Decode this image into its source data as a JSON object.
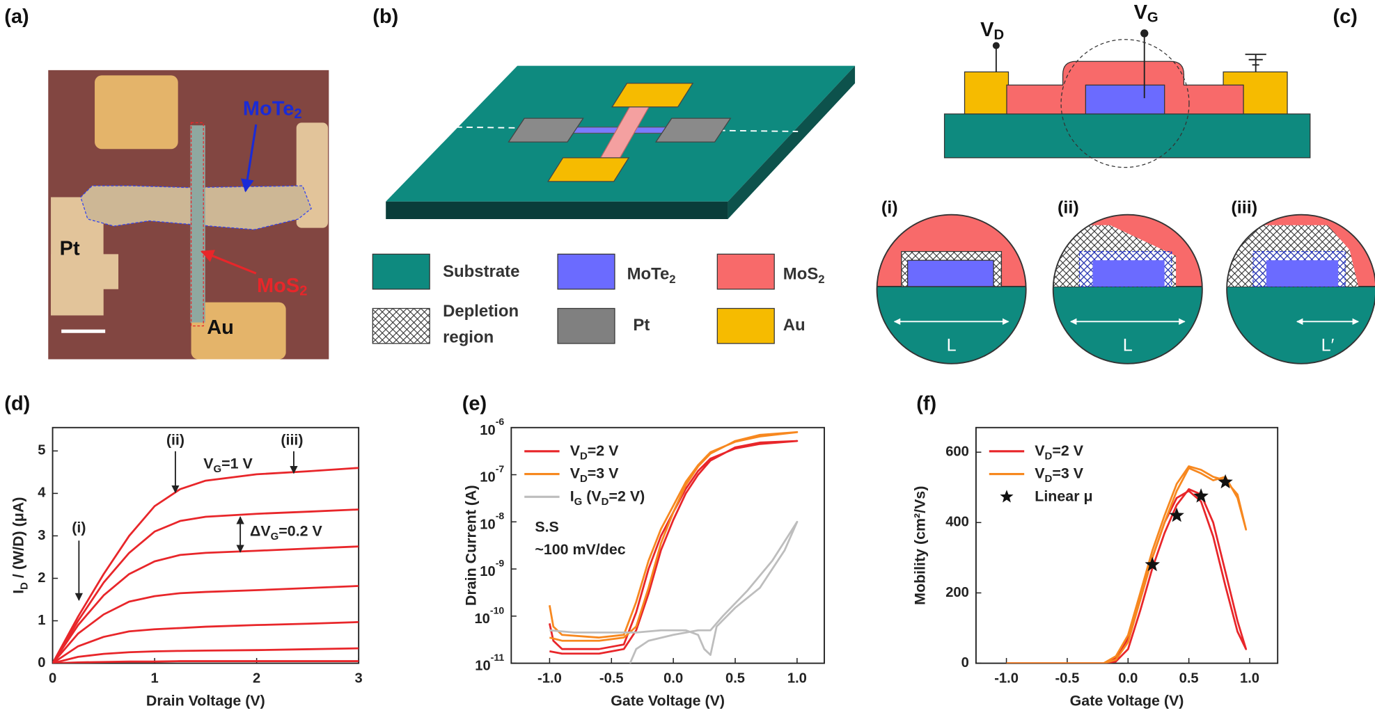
{
  "panel_a": {
    "label": "(a)",
    "mote2": [
      "MoTe",
      "2"
    ],
    "pt": "Pt",
    "mos2": [
      "MoS",
      "2"
    ],
    "au": "Au"
  },
  "panel_b": {
    "label": "(b)",
    "legend": {
      "substrate": "Substrate",
      "mote2": [
        "MoTe",
        "2"
      ],
      "mos2": [
        "MoS",
        "2"
      ],
      "depletion": [
        "Depletion",
        "region"
      ],
      "pt": "Pt",
      "au": "Au"
    }
  },
  "panel_c": {
    "label": "(c)",
    "vd": [
      "V",
      "D"
    ],
    "vg": [
      "V",
      "G"
    ],
    "insets": [
      "(i)",
      "(ii)",
      "(iii)"
    ],
    "lengths": [
      "L",
      "L",
      "L′"
    ]
  },
  "chart_data": [
    {
      "type": "line",
      "label": "(d)",
      "x_label": "Drain Voltage (V)",
      "y_label": [
        "I",
        "D",
        " / (W/D) (μA)"
      ],
      "x": [
        0,
        0.25,
        0.5,
        0.75,
        1,
        1.25,
        1.5,
        2,
        2.5,
        3
      ],
      "series": [
        {
          "color": "#e8262a",
          "values": [
            0,
            1.1,
            2.1,
            3.0,
            3.7,
            4.1,
            4.3,
            4.45,
            4.52,
            4.6
          ]
        },
        {
          "color": "#e8262a",
          "values": [
            0,
            1.0,
            1.9,
            2.6,
            3.1,
            3.35,
            3.45,
            3.52,
            3.57,
            3.62
          ]
        },
        {
          "color": "#e8262a",
          "values": [
            0,
            0.9,
            1.6,
            2.1,
            2.4,
            2.55,
            2.6,
            2.65,
            2.7,
            2.75
          ]
        },
        {
          "color": "#e8262a",
          "values": [
            0,
            0.7,
            1.15,
            1.45,
            1.58,
            1.65,
            1.68,
            1.72,
            1.77,
            1.82
          ]
        },
        {
          "color": "#e8262a",
          "values": [
            0,
            0.4,
            0.62,
            0.75,
            0.8,
            0.83,
            0.86,
            0.9,
            0.93,
            0.97
          ]
        },
        {
          "color": "#e8262a",
          "values": [
            0,
            0.15,
            0.22,
            0.26,
            0.28,
            0.29,
            0.3,
            0.31,
            0.33,
            0.35
          ]
        },
        {
          "color": "#e8262a",
          "values": [
            0,
            0.02,
            0.03,
            0.04,
            0.04,
            0.05,
            0.05,
            0.05,
            0.05,
            0.05
          ]
        }
      ],
      "xlim": [
        0,
        3
      ],
      "xticks": [
        0,
        1,
        2,
        3
      ],
      "ylim": [
        0,
        5.55
      ],
      "yticks": [
        0,
        1,
        2,
        3,
        4,
        5
      ],
      "annotations": [
        [
          "(i)"
        ],
        [
          "(ii)"
        ],
        [
          "(iii)"
        ],
        [
          "V",
          "G",
          "=1 V"
        ],
        [
          "ΔV",
          "G",
          "=0.2 V"
        ]
      ]
    },
    {
      "type": "line",
      "label": "(e)",
      "x_label": "Gate Voltage (V)",
      "y_label": [
        "Drain Current (A)"
      ],
      "ylog": true,
      "legend": "upper left",
      "series": [
        {
          "name": [
            "V",
            "D",
            "=2 V"
          ],
          "color": "#e8262a",
          "x": [
            -1,
            -0.97,
            -0.9,
            -0.6,
            -0.4,
            -0.3,
            -0.2,
            -0.1,
            0,
            0.1,
            0.2,
            0.3,
            0.5,
            0.7,
            1.0,
            0.7,
            0.5,
            0.3,
            0.2,
            0.1,
            0,
            -0.1,
            -0.2,
            -0.3,
            -0.4,
            -0.6,
            -0.9,
            -1
          ],
          "values": [
            7e-11,
            3e-11,
            2e-11,
            2e-11,
            2.5e-11,
            1.2e-10,
            1e-09,
            5e-09,
            1.6e-08,
            5e-08,
            1.2e-07,
            2.2e-07,
            3.6e-07,
            4.5e-07,
            5.2e-07,
            4.8e-07,
            3.8e-07,
            2e-07,
            1e-07,
            4e-08,
            1.1e-08,
            2.5e-09,
            3e-10,
            5e-11,
            2e-11,
            1.6e-11,
            1.6e-11,
            1.8e-11
          ]
        },
        {
          "name": [
            "V",
            "D",
            "=3 V"
          ],
          "color": "#f7881f",
          "x": [
            -1,
            -0.97,
            -0.9,
            -0.6,
            -0.4,
            -0.3,
            -0.2,
            -0.1,
            0,
            0.1,
            0.2,
            0.3,
            0.5,
            0.7,
            1.0,
            0.7,
            0.5,
            0.3,
            0.2,
            0.1,
            0,
            -0.1,
            -0.2,
            -0.3,
            -0.4,
            -0.6,
            -0.9,
            -1
          ],
          "values": [
            1.7e-10,
            6e-11,
            4e-11,
            3.5e-11,
            4e-11,
            2e-10,
            1.5e-09,
            7e-09,
            2.2e-08,
            7e-08,
            1.6e-07,
            3e-07,
            5e-07,
            6.5e-07,
            8e-07,
            7e-07,
            5.2e-07,
            2.8e-07,
            1.5e-07,
            6e-08,
            1.6e-08,
            3.5e-09,
            4e-10,
            6e-11,
            3.5e-11,
            3e-11,
            3e-11,
            3.5e-11
          ]
        },
        {
          "name": [
            "I",
            "G",
            " (V",
            "D",
            "=2 V)"
          ],
          "color": "#bdbdbd",
          "x": [
            -1,
            -0.8,
            -0.5,
            -0.3,
            -0.1,
            0.1,
            0.2,
            0.25,
            0.3,
            0.35,
            0.5,
            0.7,
            0.9,
            1.0,
            0.8,
            0.6,
            0.4,
            0.3,
            0.2,
            0,
            -0.2,
            -0.3,
            -0.35
          ],
          "values": [
            5e-11,
            4.5e-11,
            4.5e-11,
            4.5e-11,
            5e-11,
            5e-11,
            4e-11,
            2e-11,
            1.5e-11,
            6e-11,
            1.5e-10,
            4e-10,
            2.5e-09,
            1e-08,
            1.5e-09,
            3.5e-10,
            1e-10,
            5e-11,
            5e-11,
            4e-11,
            3e-11,
            2e-11,
            1e-11
          ]
        }
      ],
      "xlim": [
        -1.31,
        1.22
      ],
      "xticks": [
        {
          "value": -1,
          "label": "-1.0"
        },
        {
          "value": -0.5,
          "label": "-0.5"
        },
        {
          "value": 0,
          "label": "0.0"
        },
        0.5,
        {
          "value": 1,
          "label": "1.0"
        }
      ],
      "ylim": [
        1e-11,
        1e-06
      ],
      "yticks": [
        {
          "value": 1e-11,
          "label": "10",
          "exponent": "-11"
        },
        {
          "value": 1e-10,
          "label": "10",
          "exponent": "-10"
        },
        {
          "value": 1e-09,
          "label": "10",
          "exponent": "-9"
        },
        {
          "value": 1e-08,
          "label": "10",
          "exponent": "-8"
        },
        {
          "value": 1e-07,
          "label": "10",
          "exponent": "-7"
        },
        {
          "value": 1e-06,
          "label": "10",
          "exponent": "-6"
        }
      ],
      "annotations": [
        [
          "S.S"
        ],
        [
          "~100 mV/dec"
        ]
      ]
    },
    {
      "type": "line",
      "label": "(f)",
      "x_label": "Gate Voltage (V)",
      "y_label": [
        "Mobility (cm²/Vs)"
      ],
      "legend": "upper left",
      "series": [
        {
          "name": [
            "V",
            "D",
            "=2 V"
          ],
          "color": "#e8262a",
          "x": [
            -1,
            -0.2,
            -0.1,
            0,
            0.1,
            0.2,
            0.3,
            0.4,
            0.5,
            0.6,
            0.7,
            0.8,
            0.9,
            0.97,
            0.9,
            0.8,
            0.7,
            0.6,
            0.5,
            0.4,
            0.3,
            0.2,
            0.1,
            0,
            -0.1,
            -0.2
          ],
          "values": [
            0,
            0,
            5,
            40,
            150,
            270,
            370,
            450,
            495,
            480,
            400,
            260,
            120,
            40,
            90,
            220,
            360,
            460,
            490,
            470,
            400,
            300,
            180,
            70,
            15,
            0
          ]
        },
        {
          "name": [
            "V",
            "D",
            "=3 V"
          ],
          "color": "#f7881f",
          "x": [
            -1,
            -0.2,
            -0.1,
            0,
            0.1,
            0.2,
            0.3,
            0.4,
            0.5,
            0.6,
            0.7,
            0.8,
            0.9,
            0.97,
            0.9,
            0.8,
            0.7,
            0.6,
            0.5,
            0.4,
            0.3,
            0.2,
            0.1,
            0,
            -0.1,
            -0.2
          ],
          "values": [
            0,
            0,
            10,
            60,
            180,
            300,
            400,
            490,
            555,
            540,
            520,
            530,
            470,
            380,
            480,
            520,
            530,
            550,
            560,
            510,
            420,
            320,
            200,
            80,
            20,
            0
          ]
        },
        {
          "name": [
            "Linear μ"
          ],
          "color": "#111111",
          "type": "scatter",
          "marker": "star",
          "x": [
            0.2,
            0.4,
            0.6,
            0.8
          ],
          "values": [
            280,
            420,
            475,
            515
          ]
        }
      ],
      "xlim": [
        -1.25,
        1.23
      ],
      "xticks": [
        {
          "value": -1,
          "label": "-1.0"
        },
        {
          "value": -0.5,
          "label": "-0.5"
        },
        {
          "value": 0,
          "label": "0.0"
        },
        0.5,
        {
          "value": 1,
          "label": "1.0"
        }
      ],
      "ylim": [
        0,
        670
      ],
      "yticks": [
        0,
        200,
        400,
        600
      ]
    }
  ]
}
